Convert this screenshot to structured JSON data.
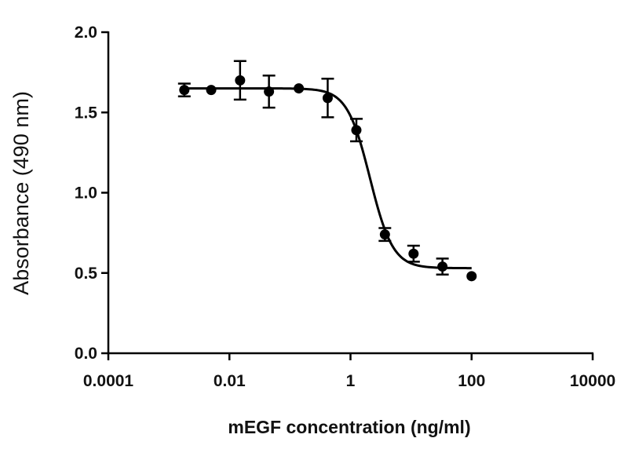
{
  "chart_data": {
    "type": "scatter",
    "title": "",
    "xlabel": "mEGF concentration (ng/ml)",
    "ylabel": "Absorbance (490 nm)",
    "x_scale": "log",
    "xlim": [
      0.0001,
      10000
    ],
    "ylim": [
      0.0,
      2.0
    ],
    "x_ticks": [
      0.0001,
      0.01,
      1,
      100,
      10000
    ],
    "x_tick_labels": [
      "0.0001",
      "0.01",
      "1",
      "100",
      "10000"
    ],
    "y_ticks": [
      0.0,
      0.5,
      1.0,
      1.5,
      2.0
    ],
    "y_tick_labels": [
      "0.0",
      "0.5",
      "1.0",
      "1.5",
      "2.0"
    ],
    "grid": false,
    "legend": "none",
    "series": [
      {
        "marker": "circle",
        "color": "#000000",
        "x": [
          0.0018,
          0.005,
          0.015,
          0.045,
          0.14,
          0.42,
          1.25,
          3.7,
          11,
          33,
          100
        ],
        "y": [
          1.64,
          1.64,
          1.7,
          1.63,
          1.65,
          1.59,
          1.39,
          0.74,
          0.62,
          0.54,
          0.48
        ],
        "error": [
          0.04,
          0.0,
          0.12,
          0.1,
          0.0,
          0.12,
          0.07,
          0.04,
          0.05,
          0.05,
          0.0
        ]
      }
    ],
    "fit_curve": {
      "type": "four-parameter logistic",
      "top": 1.65,
      "bottom": 0.53,
      "ec50": 2.1,
      "hill_slope": 2.3,
      "x_range": [
        0.0018,
        100
      ],
      "color": "#000000"
    }
  }
}
